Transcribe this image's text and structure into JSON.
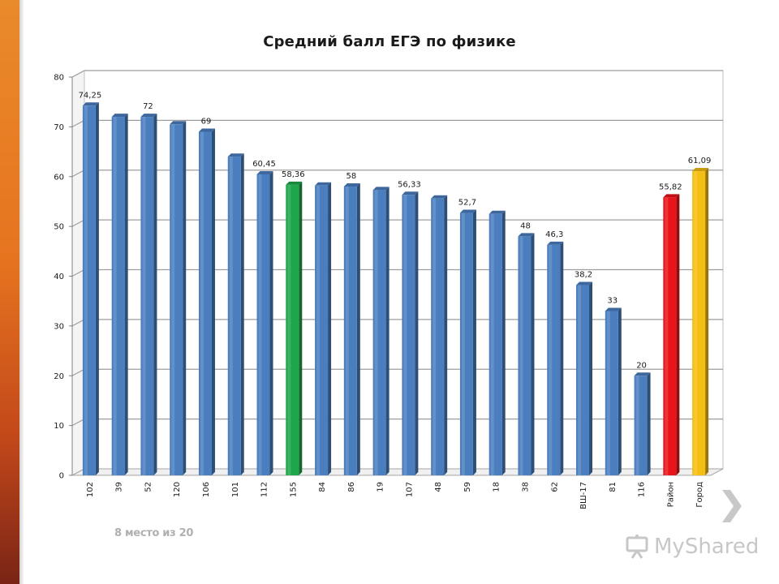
{
  "chart_data": {
    "type": "bar",
    "title": "Средний балл ЕГЭ по физике",
    "xlabel": "",
    "ylabel": "",
    "ylim": [
      0,
      80
    ],
    "yticks": [
      "0",
      "10",
      "20",
      "30",
      "40",
      "50",
      "60",
      "70",
      "80"
    ],
    "categories": [
      "102",
      "39",
      "52",
      "120",
      "106",
      "101",
      "112",
      "155",
      "84",
      "86",
      "19",
      "107",
      "48",
      "59",
      "18",
      "38",
      "62",
      "ВШ-17",
      "81",
      "116",
      "Район",
      "Город"
    ],
    "values": [
      74.25,
      72,
      72,
      70.5,
      69,
      64,
      60.45,
      58.36,
      58.2,
      58,
      57.3,
      56.33,
      55.6,
      52.7,
      52.5,
      48,
      46.3,
      38.2,
      33,
      20,
      55.82,
      61.09
    ],
    "data_labels": [
      "74,25",
      "",
      "72",
      "",
      "69",
      "",
      "60,45",
      "58,36",
      "",
      "58",
      "",
      "56,33",
      "",
      "52,7",
      "",
      "48",
      "46,3",
      "38,2",
      "33",
      "20",
      "55,82",
      "61,09"
    ],
    "bar_colors": [
      "#4a7ebf",
      "#4a7ebf",
      "#4a7ebf",
      "#4a7ebf",
      "#4a7ebf",
      "#4a7ebf",
      "#4a7ebf",
      "#1fa64a",
      "#4a7ebf",
      "#4a7ebf",
      "#4a7ebf",
      "#4a7ebf",
      "#4a7ebf",
      "#4a7ebf",
      "#4a7ebf",
      "#4a7ebf",
      "#4a7ebf",
      "#4a7ebf",
      "#4a7ebf",
      "#4a7ebf",
      "#e8141a",
      "#f5be12"
    ],
    "grid": true,
    "legend": "none"
  },
  "annotation": {
    "rank_text": "8 место из  20"
  },
  "watermark": {
    "text": "MyShared",
    "icon": "presentation-board-icon"
  },
  "nav": {
    "next_icon": "chevron-right-icon"
  },
  "colors": {
    "stripe": "#e6731f",
    "default_bar": "#4a7ebf",
    "highlight_school": "#1fa64a",
    "district": "#e8141a",
    "city": "#f5be12"
  }
}
